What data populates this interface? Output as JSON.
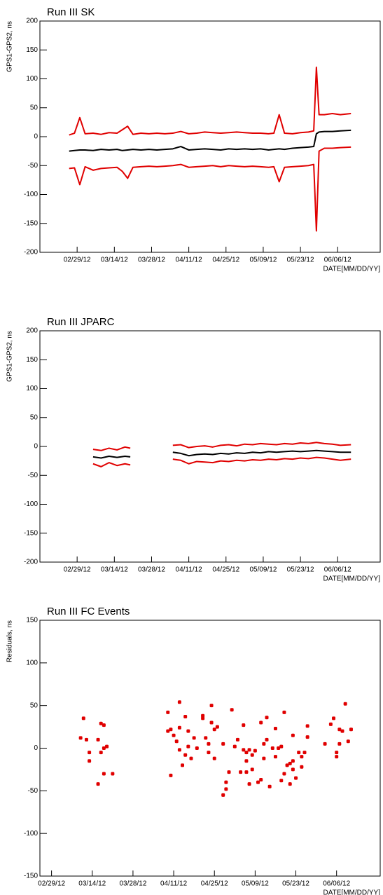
{
  "chart_data": [
    {
      "type": "line",
      "title": "Run III SK",
      "ylabel": "GPS1-GPS2, ns",
      "xlabel": "DATE[MM/DD/YY]",
      "x": [
        "02/26/12",
        "02/28/12",
        "03/01/12",
        "03/03/12",
        "03/06/12",
        "03/09/12",
        "03/12/12",
        "03/15/12",
        "03/17/12",
        "03/19/12",
        "03/21/12",
        "03/24/12",
        "03/27/12",
        "03/30/12",
        "04/02/12",
        "04/05/12",
        "04/08/12",
        "04/11/12",
        "04/14/12",
        "04/17/12",
        "04/20/12",
        "04/23/12",
        "04/26/12",
        "04/29/12",
        "05/02/12",
        "05/05/12",
        "05/08/12",
        "05/11/12",
        "05/13/12",
        "05/15/12",
        "05/17/12",
        "05/20/12",
        "05/23/12",
        "05/26/12",
        "05/28/12",
        "05/29/12",
        "05/30/12",
        "06/01/12",
        "06/04/12",
        "06/07/12",
        "06/11/12"
      ],
      "series": [
        {
          "color": "#000000",
          "values": [
            -25,
            -24,
            -23,
            -23,
            -24,
            -22,
            -23,
            -22,
            -24,
            -23,
            -22,
            -23,
            -22,
            -23,
            -22,
            -21,
            -17,
            -23,
            -22,
            -21,
            -22,
            -23,
            -21,
            -22,
            -21,
            -22,
            -21,
            -23,
            -22,
            -21,
            -22,
            -20,
            -19,
            -18,
            -17,
            5,
            8,
            9,
            9,
            10,
            11
          ]
        },
        {
          "color": "#e00000",
          "values": [
            3,
            6,
            33,
            5,
            6,
            4,
            7,
            6,
            12,
            18,
            4,
            6,
            5,
            6,
            5,
            6,
            9,
            5,
            6,
            8,
            7,
            6,
            7,
            8,
            7,
            6,
            6,
            5,
            6,
            38,
            6,
            5,
            7,
            8,
            10,
            120,
            38,
            38,
            40,
            38,
            40
          ]
        },
        {
          "color": "#e00000",
          "values": [
            -55,
            -54,
            -83,
            -52,
            -58,
            -55,
            -54,
            -53,
            -60,
            -72,
            -53,
            -52,
            -51,
            -52,
            -51,
            -50,
            -48,
            -53,
            -52,
            -51,
            -50,
            -52,
            -50,
            -51,
            -52,
            -51,
            -52,
            -53,
            -52,
            -78,
            -53,
            -52,
            -51,
            -50,
            -48,
            -163,
            -25,
            -20,
            -20,
            -19,
            -18
          ]
        }
      ],
      "xlim": [
        "02/15/12",
        "06/22/12"
      ],
      "xticks": [
        "02/29/12",
        "03/14/12",
        "03/28/12",
        "04/11/12",
        "04/25/12",
        "05/09/12",
        "05/23/12",
        "06/06/12"
      ],
      "ylim": [
        -200,
        200
      ],
      "yticks": [
        -200,
        -150,
        -100,
        -50,
        0,
        50,
        100,
        150,
        200
      ]
    },
    {
      "type": "line",
      "title": "Run III JPARC",
      "ylabel": "GPS1-GPS2, ns",
      "xlabel": "DATE[MM/DD/YY]",
      "x": [
        "03/06/12",
        "03/09/12",
        "03/12/12",
        "03/15/12",
        "03/18/12",
        "03/20/12",
        "03/28/12",
        "04/05/12",
        "04/08/12",
        "04/11/12",
        "04/14/12",
        "04/17/12",
        "04/20/12",
        "04/23/12",
        "04/26/12",
        "04/29/12",
        "05/02/12",
        "05/05/12",
        "05/08/12",
        "05/11/12",
        "05/14/12",
        "05/17/12",
        "05/20/12",
        "05/23/12",
        "05/26/12",
        "05/29/12",
        "06/01/12",
        "06/04/12",
        "06/07/12",
        "06/11/12"
      ],
      "series": [
        {
          "color": "#000000",
          "values": [
            -18,
            -20,
            -17,
            -19,
            -17,
            -18,
            null,
            -10,
            -12,
            -16,
            -14,
            -13,
            -14,
            -12,
            -13,
            -11,
            -12,
            -10,
            -11,
            -9,
            -10,
            -9,
            -8,
            -9,
            -8,
            -7,
            -8,
            -9,
            -10,
            -10
          ]
        },
        {
          "color": "#e00000",
          "values": [
            -5,
            -7,
            -3,
            -6,
            -1,
            -3,
            null,
            2,
            3,
            -2,
            0,
            1,
            -1,
            2,
            3,
            1,
            4,
            3,
            5,
            4,
            3,
            5,
            4,
            6,
            5,
            7,
            5,
            4,
            2,
            3
          ]
        },
        {
          "color": "#e00000",
          "values": [
            -30,
            -35,
            -28,
            -33,
            -30,
            -32,
            null,
            -22,
            -24,
            -30,
            -26,
            -27,
            -28,
            -25,
            -26,
            -24,
            -25,
            -23,
            -24,
            -22,
            -23,
            -21,
            -22,
            -20,
            -21,
            -19,
            -20,
            -22,
            -24,
            -22
          ]
        }
      ],
      "xlim": [
        "02/15/12",
        "06/22/12"
      ],
      "xticks": [
        "02/29/12",
        "03/14/12",
        "03/28/12",
        "04/11/12",
        "04/25/12",
        "05/09/12",
        "05/23/12",
        "06/06/12"
      ],
      "ylim": [
        -200,
        200
      ],
      "yticks": [
        -200,
        -150,
        -100,
        -50,
        0,
        50,
        100,
        150,
        200
      ]
    },
    {
      "type": "scatter",
      "title": "Run III FC Events",
      "ylabel": "Residuals, ns",
      "xlabel": "DATE[MM/DD/YY]",
      "color": "#e00000",
      "x": [
        "03/10/12",
        "03/11/12",
        "03/12/12",
        "03/13/12",
        "03/13/12",
        "03/16/12",
        "03/16/12",
        "03/17/12",
        "03/18/12",
        "03/17/12",
        "03/18/12",
        "03/18/12",
        "03/19/12",
        "03/21/12",
        "04/09/12",
        "04/09/12",
        "04/10/12",
        "04/10/12",
        "04/11/12",
        "04/12/12",
        "04/13/12",
        "04/13/12",
        "04/13/12",
        "04/14/12",
        "04/15/12",
        "04/15/12",
        "04/16/12",
        "04/16/12",
        "04/17/12",
        "04/18/12",
        "04/19/12",
        "04/21/12",
        "04/21/12",
        "04/22/12",
        "04/23/12",
        "04/23/12",
        "04/24/12",
        "04/24/12",
        "04/25/12",
        "04/25/12",
        "04/26/12",
        "04/28/12",
        "04/28/12",
        "04/29/12",
        "04/29/12",
        "04/30/12",
        "05/01/12",
        "05/02/12",
        "05/03/12",
        "05/04/12",
        "05/05/12",
        "05/05/12",
        "05/06/12",
        "05/06/12",
        "05/06/12",
        "05/07/12",
        "05/07/12",
        "05/08/12",
        "05/08/12",
        "05/09/12",
        "05/10/12",
        "05/11/12",
        "05/11/12",
        "05/12/12",
        "05/12/12",
        "05/13/12",
        "05/13/12",
        "05/14/12",
        "05/15/12",
        "05/16/12",
        "05/16/12",
        "05/17/12",
        "05/18/12",
        "05/18/12",
        "05/19/12",
        "05/19/12",
        "05/20/12",
        "05/21/12",
        "05/21/12",
        "05/22/12",
        "05/22/12",
        "05/22/12",
        "05/23/12",
        "05/24/12",
        "05/25/12",
        "05/25/12",
        "05/26/12",
        "05/27/12",
        "05/27/12",
        "06/02/12",
        "06/04/12",
        "06/05/12",
        "06/06/12",
        "06/06/12",
        "06/07/12",
        "06/07/12",
        "06/08/12",
        "06/09/12",
        "06/10/12",
        "06/11/12"
      ],
      "values": [
        12,
        35,
        10,
        -5,
        -15,
        10,
        -42,
        29,
        27,
        -5,
        0,
        -30,
        2,
        -30,
        42,
        20,
        22,
        -32,
        15,
        8,
        54,
        -2,
        24,
        -20,
        37,
        -8,
        2,
        20,
        -12,
        12,
        0,
        38,
        35,
        12,
        5,
        -5,
        30,
        50,
        -12,
        22,
        25,
        5,
        -55,
        -48,
        -40,
        -28,
        45,
        2,
        10,
        -28,
        -2,
        27,
        -15,
        -28,
        -5,
        -42,
        -2,
        -8,
        -25,
        -3,
        -40,
        -37,
        30,
        5,
        -12,
        36,
        10,
        -45,
        0,
        -10,
        23,
        0,
        -38,
        2,
        42,
        -30,
        -20,
        -18,
        -42,
        -25,
        -15,
        15,
        -35,
        -5,
        -22,
        -10,
        -5,
        26,
        13,
        5,
        28,
        35,
        -10,
        -5,
        22,
        5,
        20,
        52,
        8,
        22
      ],
      "xlim": [
        "02/25/12",
        "06/21/12"
      ],
      "xticks": [
        "02/29/12",
        "03/14/12",
        "03/28/12",
        "04/11/12",
        "04/25/12",
        "05/09/12",
        "05/23/12",
        "06/06/12"
      ],
      "ylim": [
        -150,
        150
      ],
      "yticks": [
        -150,
        -100,
        -50,
        0,
        50,
        100,
        150
      ]
    }
  ]
}
